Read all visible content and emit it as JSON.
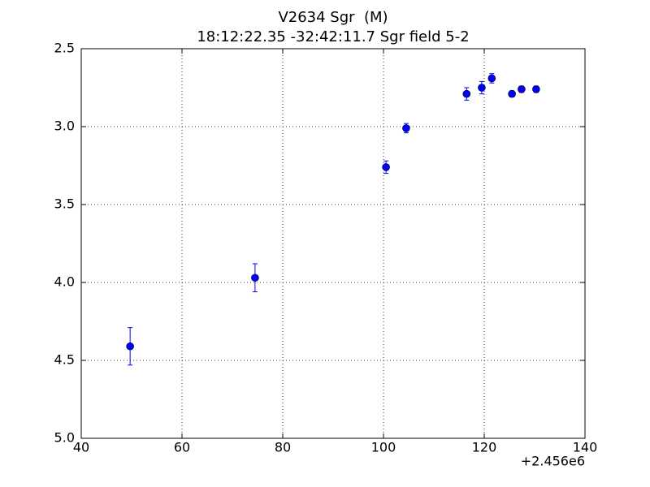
{
  "chart_data": {
    "type": "scatter",
    "title": "V2634 Sgr  (M)",
    "subtitle": "18:12:22.35 -32:42:11.7 Sgr field 5-2",
    "x_offset_label": "+2.456e6",
    "x": [
      49.7,
      74.5,
      100.5,
      104.5,
      116.5,
      119.5,
      121.5,
      125.5,
      127.4,
      130.3
    ],
    "values": [
      4.41,
      3.97,
      3.26,
      3.01,
      2.79,
      2.75,
      2.69,
      2.79,
      2.76,
      2.76
    ],
    "errors": [
      0.12,
      0.09,
      0.04,
      0.03,
      0.04,
      0.04,
      0.03,
      0.02,
      0.02,
      0.02
    ],
    "color": "#0000ff",
    "xlim": [
      40,
      140
    ],
    "xticks": [
      40,
      60,
      80,
      100,
      120,
      140
    ],
    "ylim": [
      5.0,
      2.5
    ],
    "yticks": [
      2.5,
      {
        "value": 3,
        "label": "3.0"
      },
      3.5,
      {
        "value": 4,
        "label": "4.0"
      },
      4.5,
      {
        "value": 5,
        "label": "5.0"
      }
    ],
    "grid": true
  }
}
